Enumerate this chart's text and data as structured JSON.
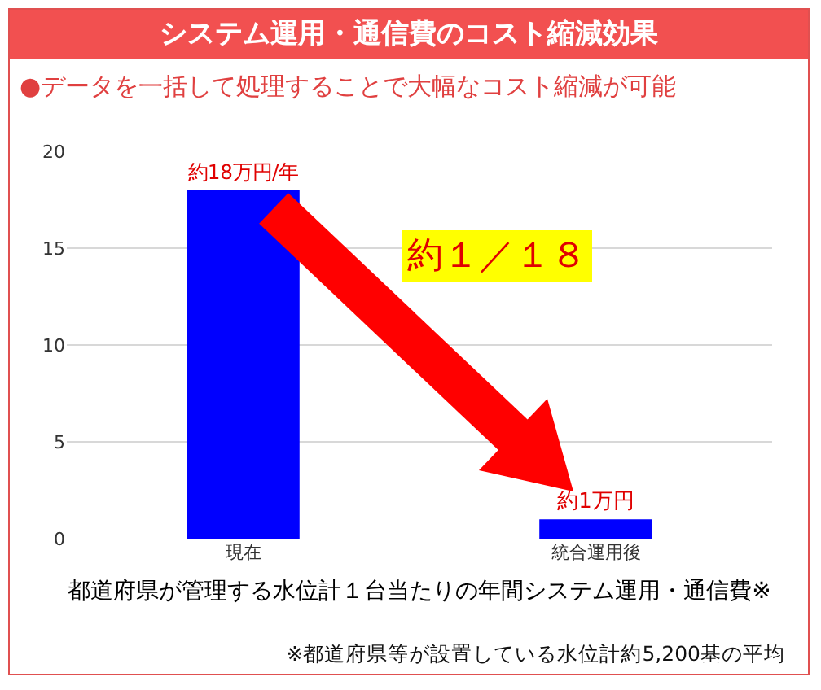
{
  "chart_data": {
    "type": "bar",
    "title": "システム運用・通信費のコスト縮減効果",
    "subtitle": "●データを一括して処理することで大幅なコスト縮減が可能",
    "categories": [
      "現在",
      "統合運用後"
    ],
    "values": [
      18,
      1
    ],
    "value_labels": [
      "約18万円/年",
      "約1万円"
    ],
    "color": "#0000ff",
    "xlabel": "都道府県が管理する水位計１台当たりの年間システム運用・通信費※",
    "annotations": [
      "約１／１８",
      "※都道府県等が設置している水位計約5,200基の平均"
    ],
    "ylim": [
      0,
      20
    ],
    "yticks": [
      0,
      5,
      10,
      15,
      20
    ],
    "grid": "y"
  }
}
